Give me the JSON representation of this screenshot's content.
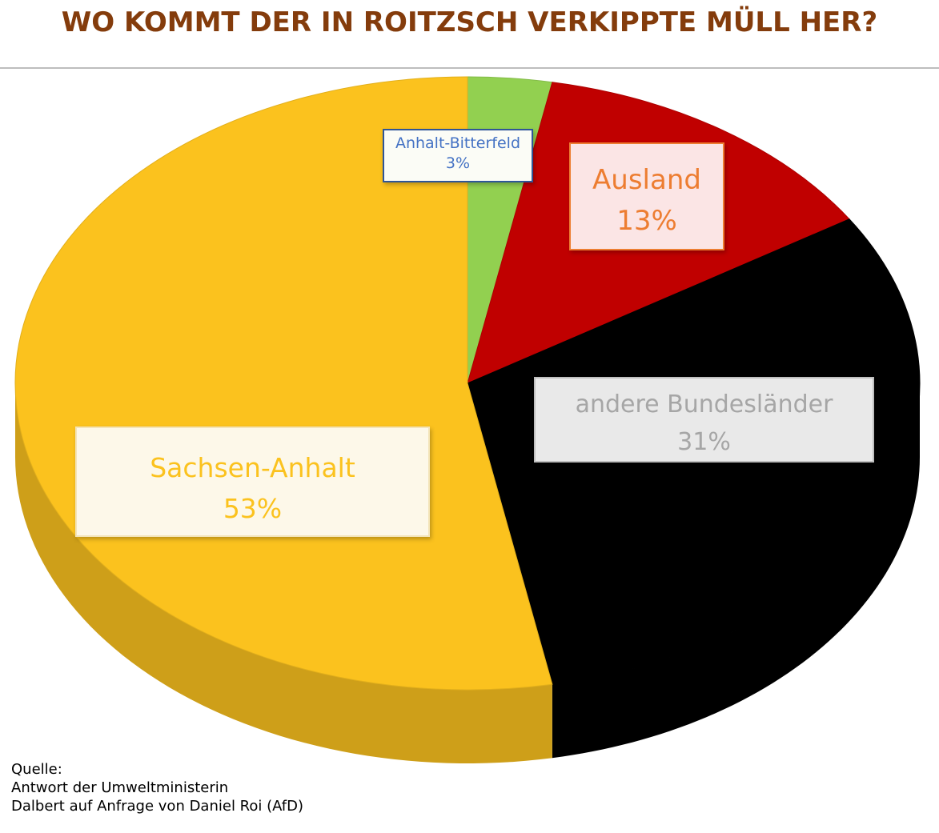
{
  "chart_data": {
    "type": "pie",
    "title": "WO KOMMT DER IN ROITZSCH VERKIPPTE MÜLL HER?",
    "unit": "%",
    "slices": [
      {
        "label": "Anhalt-Bitterfeld",
        "value": 3,
        "value_label": "3%",
        "color": "#92d050",
        "label_text_color": "#4472c4",
        "label_border": "#2f5597",
        "label_bg": "#fbfcf6"
      },
      {
        "label": "Ausland",
        "value": 13,
        "value_label": "13%",
        "color": "#c00000",
        "label_text_color": "#ed7d31",
        "label_border": "#ed7d31",
        "label_bg": "#fbe5e5"
      },
      {
        "label": "andere Bundesländer",
        "value": 31,
        "value_label": "31%",
        "color": "#000000",
        "label_text_color": "#a6a6a6",
        "label_border": "#bfbfbf",
        "label_bg": "#e9e9e9"
      },
      {
        "label": "Sachsen-Anhalt",
        "value": 53,
        "value_label": "53%",
        "color": "#fbc21e",
        "label_text_color": "#fbc21e",
        "label_border": "#f3e4b9",
        "label_bg": "#fdf8e9"
      }
    ],
    "start_angle": "12 o'clock",
    "direction": "clockwise",
    "style": "3d"
  },
  "source_note": {
    "lines": [
      "Quelle:",
      "Antwort der Umweltministerin",
      "Dalbert auf Anfrage von Daniel Roi (AfD)"
    ]
  },
  "colors": {
    "title": "#843c0c",
    "divider": "#bdbdbd"
  }
}
